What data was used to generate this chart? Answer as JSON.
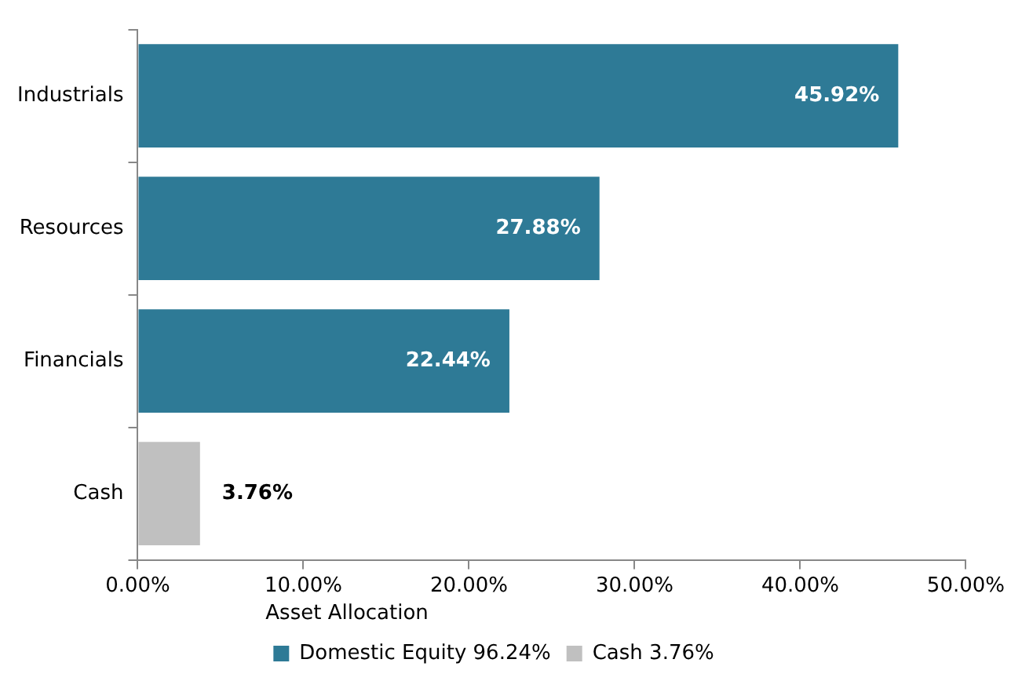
{
  "chart_data": {
    "type": "bar",
    "orientation": "horizontal",
    "stacked": true,
    "legend": "bottom",
    "legend_title": "Asset Allocation",
    "grid": false,
    "categories": [
      "Industrials",
      "Resources",
      "Financials",
      "Cash"
    ],
    "series": [
      {
        "name": "Domestic Equity 96.24%",
        "color": "#2e7a96",
        "values": [
          45.92,
          27.88,
          22.44,
          null
        ],
        "value_labels": [
          "45.92%",
          "27.88%",
          "22.44%",
          null
        ]
      },
      {
        "name": "Cash 3.76%",
        "color": "#c0c0c0",
        "values": [
          null,
          null,
          null,
          3.76
        ],
        "value_labels": [
          null,
          null,
          null,
          "3.76%"
        ]
      }
    ],
    "xlim": [
      0,
      50
    ],
    "xticks": [
      {
        "value": 0,
        "label": "0.00%"
      },
      {
        "value": 10,
        "label": "10.00%"
      },
      {
        "value": 20,
        "label": "20.00%"
      },
      {
        "value": 30,
        "label": "30.00%"
      },
      {
        "value": 40,
        "label": "40.00%"
      },
      {
        "value": 50,
        "label": "50.00%"
      }
    ]
  }
}
